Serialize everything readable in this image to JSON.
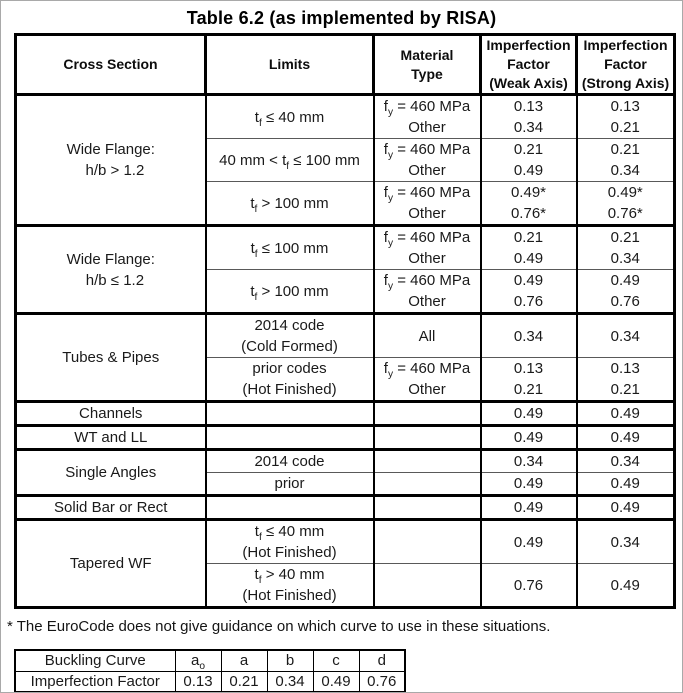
{
  "title": "Table 6.2 (as implemented by RISA)",
  "main_table": {
    "headers": [
      "Cross Section",
      "Limits",
      "Material\nType",
      "Imperfection\nFactor\n(Weak Axis)",
      "Imperfection\nFactor\n(Strong Axis)"
    ],
    "sections": [
      {
        "cross": "Wide Flange:\n  h/b > 1.2",
        "rows": [
          {
            "limits": "t~f~ ≤ 40 mm",
            "material": "f~y~ = 460 MPa\nOther",
            "weak": "0.13\n0.34",
            "strong": "0.13\n0.21"
          },
          {
            "limits": "40 mm < t~f~ ≤ 100 mm",
            "material": "f~y~ = 460 MPa\nOther",
            "weak": "0.21\n0.49",
            "strong": "0.21\n0.34"
          },
          {
            "limits": "t~f~ > 100 mm",
            "material": "f~y~ = 460 MPa\nOther",
            "weak": "0.49*\n0.76*",
            "strong": "0.49*\n0.76*"
          }
        ]
      },
      {
        "cross": "Wide Flange:\n  h/b ≤ 1.2",
        "rows": [
          {
            "limits": "t~f~ ≤ 100 mm",
            "material": "f~y~ = 460 MPa\nOther",
            "weak": "0.21\n0.49",
            "strong": "0.21\n0.34"
          },
          {
            "limits": "t~f~ > 100 mm",
            "material": "f~y~ = 460 MPa\nOther",
            "weak": "0.49\n0.76",
            "strong": "0.49\n0.76"
          }
        ]
      },
      {
        "cross": "Tubes & Pipes",
        "rows": [
          {
            "limits": "2014 code\n(Cold Formed)",
            "material": "All",
            "weak": "0.34",
            "strong": "0.34"
          },
          {
            "limits": "prior codes\n(Hot Finished)",
            "material": "f~y~ = 460 MPa\nOther",
            "weak": "0.13\n0.21",
            "strong": "0.13\n0.21"
          }
        ]
      },
      {
        "cross": "Channels",
        "rows": [
          {
            "limits": "",
            "material": "",
            "weak": "0.49",
            "strong": "0.49"
          }
        ]
      },
      {
        "cross": "WT and LL",
        "rows": [
          {
            "limits": "",
            "material": "",
            "weak": "0.49",
            "strong": "0.49"
          }
        ]
      },
      {
        "cross": "Single Angles",
        "rows": [
          {
            "limits": "2014 code",
            "material": "",
            "weak": "0.34",
            "strong": "0.34"
          },
          {
            "limits": "prior",
            "material": "",
            "weak": "0.49",
            "strong": "0.49"
          }
        ]
      },
      {
        "cross": "Solid Bar or Rect",
        "rows": [
          {
            "limits": "",
            "material": "",
            "weak": "0.49",
            "strong": "0.49"
          }
        ]
      },
      {
        "cross": "Tapered WF",
        "rows": [
          {
            "limits": "t~f~ ≤ 40 mm\n(Hot Finished)",
            "material": "",
            "weak": "0.49",
            "strong": "0.34"
          },
          {
            "limits": "t~f~ > 40 mm\n(Hot Finished)",
            "material": "",
            "weak": "0.76",
            "strong": "0.49"
          }
        ]
      }
    ]
  },
  "footnote": "* The EuroCode does not give guidance on which curve to use in these situations.",
  "curve_table": {
    "rows": [
      {
        "label": "Buckling Curve",
        "cells": [
          "a~o~",
          "a",
          "b",
          "c",
          "d"
        ]
      },
      {
        "label": "Imperfection Factor",
        "cells": [
          "0.13",
          "0.21",
          "0.34",
          "0.49",
          "0.76"
        ]
      }
    ]
  },
  "colors": {
    "border": "#000000",
    "thin_rule": "#595959",
    "text": "#1a1a1a",
    "background": "#ffffff"
  }
}
